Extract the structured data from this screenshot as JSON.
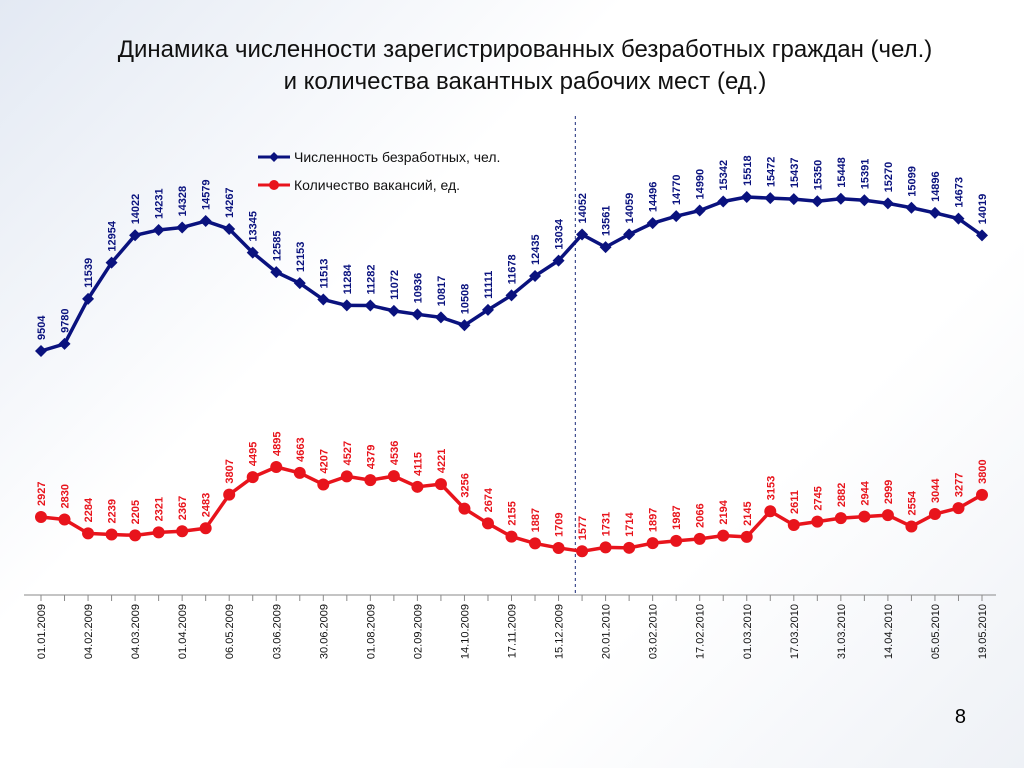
{
  "slide": {
    "title_line1": "Динамика численности зарегистрированных безработных граждан (чел.)",
    "title_line2": "и количества вакантных рабочих мест (ед.)",
    "page_number": "8"
  },
  "chart_data": {
    "type": "line",
    "x": [
      "01.01.2009",
      "",
      "04.02.2009",
      "",
      "04.03.2009",
      "",
      "01.04.2009",
      "",
      "06.05.2009",
      "",
      "03.06.2009",
      "",
      "30.06.2009",
      "",
      "01.08.2009",
      "",
      "02.09.2009",
      "",
      "14.10.2009",
      "",
      "17.11.2009",
      "",
      "15.12.2009",
      "",
      "20.01.2010",
      "",
      "03.02.2010",
      "",
      "17.02.2010",
      "",
      "01.03.2010",
      "",
      "17.03.2010",
      "",
      "31.03.2010",
      "",
      "14.04.2010",
      "",
      "05.05.2010",
      "",
      "19.05.2010"
    ],
    "series": [
      {
        "name": "Численность безработных, чел.",
        "color": "#0a127e",
        "marker": "diamond",
        "values": [
          9504,
          9780,
          11539,
          12954,
          14022,
          14231,
          14328,
          14579,
          14267,
          13345,
          12585,
          12153,
          11513,
          11284,
          11282,
          11072,
          10936,
          10817,
          10508,
          11111,
          11678,
          12435,
          13034,
          14052,
          13561,
          14059,
          14496,
          14770,
          14990,
          15342,
          15518,
          15472,
          15437,
          15350,
          15448,
          15391,
          15270,
          15099,
          14896,
          14673,
          14019
        ]
      },
      {
        "name": "Количество вакансий, ед.",
        "color": "#e8141c",
        "marker": "circle",
        "values": [
          2927,
          2830,
          2284,
          2239,
          2205,
          2321,
          2367,
          2483,
          3807,
          4495,
          4895,
          4663,
          4207,
          4527,
          4379,
          4536,
          4115,
          4221,
          3256,
          2674,
          2155,
          1887,
          1709,
          1577,
          1731,
          1714,
          1897,
          1987,
          2066,
          2194,
          2145,
          3153,
          2611,
          2745,
          2882,
          2944,
          2999,
          2554,
          3044,
          3277,
          3800
        ]
      }
    ],
    "legend_position": "top-center",
    "grid": false,
    "vertical_marker": {
      "after_label": "15.12.2009",
      "style": "dashed"
    }
  }
}
